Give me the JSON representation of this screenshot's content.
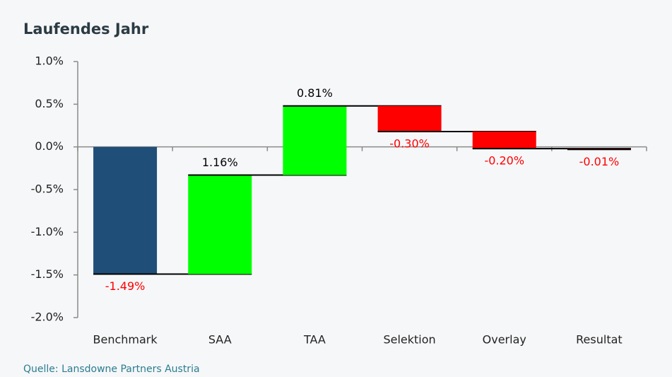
{
  "chart_data": {
    "type": "waterfall",
    "title": "Laufendes Jahr",
    "categories": [
      "Benchmark",
      "SAA",
      "TAA",
      "Selektion",
      "Overlay",
      "Resultat"
    ],
    "values": [
      -1.49,
      1.16,
      0.81,
      -0.3,
      -0.2,
      -0.01
    ],
    "value_labels": [
      "-1.49%",
      "1.16%",
      "0.81%",
      "-0.30%",
      "-0.20%",
      "-0.01%"
    ],
    "colors": [
      "#1f4e79",
      "#00ff00",
      "#00ff00",
      "#ff0000",
      "#ff0000",
      "#ff0000"
    ],
    "value_label_colors": [
      "#ff0000",
      "#000000",
      "#000000",
      "#ff0000",
      "#ff0000",
      "#ff0000"
    ],
    "ylim": [
      -2.0,
      1.0
    ],
    "yticks": [
      {
        "value": -2.0,
        "label": "-2.0%"
      },
      {
        "value": -1.5,
        "label": "-1.5%"
      },
      {
        "value": -1.0,
        "label": "-1.0%"
      },
      {
        "value": -0.5,
        "label": "-0.5%"
      },
      {
        "value": 0.0,
        "label": "0.0%"
      },
      {
        "value": 0.5,
        "label": "0.5%"
      },
      {
        "value": 1.0,
        "label": "1.0%"
      }
    ],
    "source": "Quelle: Lansdowne Partners Austria"
  }
}
